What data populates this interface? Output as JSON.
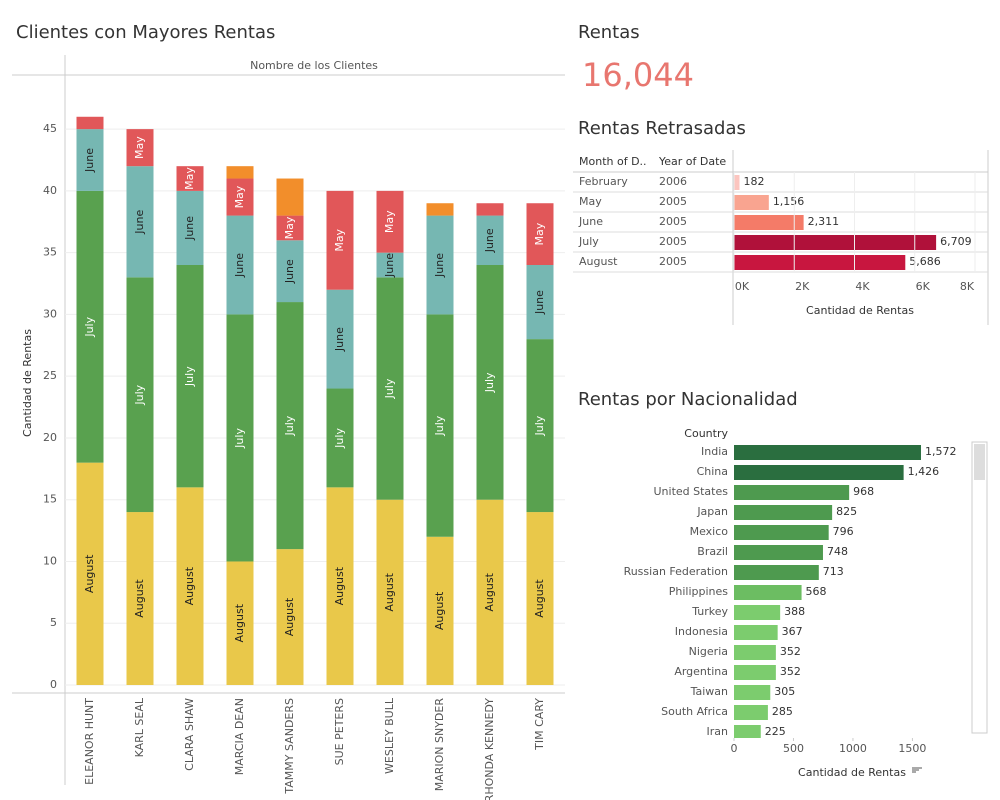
{
  "chart_data": [
    {
      "type": "stacked_bar",
      "title": "Clientes con Mayores Rentas",
      "header": "Nombre de los Clientes",
      "ylabel": "Cantidad de Rentas",
      "categories": [
        "ELEANOR HUNT",
        "KARL SEAL",
        "CLARA SHAW",
        "MARCIA DEAN",
        "TAMMY SANDERS",
        "SUE PETERS",
        "WESLEY BULL",
        "MARION SNYDER",
        "RHONDA KENNEDY",
        "TIM CARY"
      ],
      "series": [
        {
          "name": "August",
          "color": "#e9c84a",
          "values": [
            18,
            14,
            16,
            10,
            11,
            16,
            15,
            12,
            15,
            14
          ]
        },
        {
          "name": "July",
          "color": "#59a14f",
          "values": [
            22,
            19,
            18,
            20,
            20,
            8,
            18,
            18,
            19,
            14
          ]
        },
        {
          "name": "June",
          "color": "#76b7b2",
          "values": [
            5,
            9,
            6,
            8,
            5,
            8,
            2,
            8,
            4,
            6
          ]
        },
        {
          "name": "May",
          "color": "#e15759",
          "values": [
            1,
            3,
            2,
            3,
            2,
            8,
            5,
            null,
            1,
            5
          ]
        },
        {
          "name": null,
          "color": "#f28e2b",
          "values": [
            null,
            null,
            null,
            1,
            3,
            null,
            null,
            1,
            null,
            null
          ]
        }
      ],
      "ylim": [
        0,
        51
      ],
      "yticks": [
        0,
        5,
        10,
        15,
        20,
        25,
        30,
        35,
        40,
        45
      ],
      "grid": true
    },
    {
      "type": "kpi",
      "title": "Rentas",
      "value": 16044,
      "value_label": "16,044",
      "color": "#e8766f"
    },
    {
      "type": "table_bar",
      "title": "Rentas Retrasadas",
      "columns": [
        "Month of D..",
        "Year of Date"
      ],
      "rows": [
        [
          "February",
          "2006"
        ],
        [
          "May",
          "2005"
        ],
        [
          "June",
          "2005"
        ],
        [
          "July",
          "2005"
        ],
        [
          "August",
          "2005"
        ]
      ],
      "values": [
        182,
        1156,
        2311,
        6709,
        5686
      ],
      "value_labels": [
        "182",
        "1,156",
        "2,311",
        "6,709",
        "5,686"
      ],
      "colors": [
        "#fcc5bf",
        "#f9a490",
        "#f47b68",
        "#b0113a",
        "#c8163f"
      ],
      "xlim": [
        0,
        8000
      ],
      "xticks": [
        {
          "value": 0,
          "label": "0K"
        },
        {
          "value": 2000,
          "label": "2K"
        },
        {
          "value": 4000,
          "label": "4K"
        },
        {
          "value": 6000,
          "label": "6K"
        },
        {
          "value": 8000,
          "label": "8K"
        }
      ],
      "xlabel": "Cantidad de Rentas"
    },
    {
      "type": "bar_h",
      "title": "Rentas por Nacionalidad",
      "header": "Country",
      "categories": [
        "India",
        "China",
        "United States",
        "Japan",
        "Mexico",
        "Brazil",
        "Russian Federation",
        "Philippines",
        "Turkey",
        "Indonesia",
        "Nigeria",
        "Argentina",
        "Taiwan",
        "South Africa",
        "Iran"
      ],
      "values": [
        1572,
        1426,
        968,
        825,
        796,
        748,
        713,
        568,
        388,
        367,
        352,
        352,
        305,
        285,
        225
      ],
      "value_labels": [
        "1,572",
        "1,426",
        "968",
        "825",
        "796",
        "748",
        "713",
        "568",
        "388",
        "367",
        "352",
        "352",
        "305",
        "285",
        "225"
      ],
      "colors": [
        "#2a6e3f",
        "#2a6e3f",
        "#4e9a4f",
        "#4e9a4f",
        "#4e9a4f",
        "#4e9a4f",
        "#4e9a4f",
        "#6cbd62",
        "#7ccc6e",
        "#7ccc6e",
        "#7ccc6e",
        "#7ccc6e",
        "#7ccc6e",
        "#7ccc6e",
        "#7ccc6e"
      ],
      "xlim": [
        0,
        1900
      ],
      "xticks": [
        0,
        500,
        1000,
        1500
      ],
      "xlabel": "Cantidad de Rentas"
    }
  ]
}
